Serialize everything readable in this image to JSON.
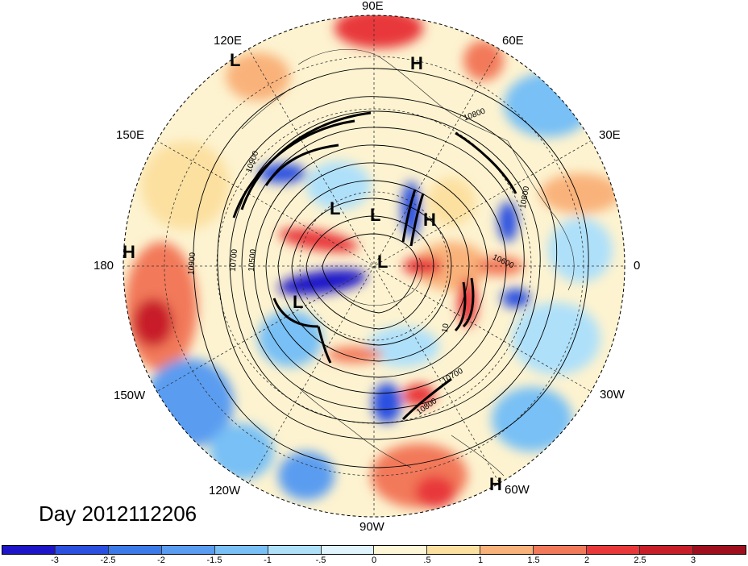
{
  "title": "Day 2012112206",
  "longitude_labels": [
    "90E",
    "60E",
    "30E",
    "0",
    "30W",
    "60W",
    "90W",
    "120W",
    "150W",
    "180",
    "150E",
    "120E"
  ],
  "pressure_systems": [
    {
      "type": "L"
    },
    {
      "type": "H"
    },
    {
      "type": "L"
    },
    {
      "type": "L"
    },
    {
      "type": "H"
    },
    {
      "type": "L"
    },
    {
      "type": "L"
    },
    {
      "type": "H"
    },
    {
      "type": "H"
    }
  ],
  "contour_labels": [
    "10900",
    "10800",
    "10700",
    "10500",
    "10900",
    "10800",
    "10600",
    "10700",
    "10800",
    "10"
  ],
  "colorbar": {
    "ticks": [
      "-3",
      "-2.5",
      "-2",
      "-1.5",
      "-1",
      "-.5",
      "0",
      ".5",
      "1",
      "1.5",
      "2",
      "2.5",
      "3"
    ],
    "colors": [
      "#1e14c8",
      "#2b50e0",
      "#3c7ae8",
      "#5a9cf0",
      "#78c0f5",
      "#aee0fa",
      "#dff4fc",
      "#fdf7d8",
      "#fce0a0",
      "#f9b27a",
      "#f2795a",
      "#e8383a",
      "#c81e2a",
      "#a00f1e"
    ]
  }
}
